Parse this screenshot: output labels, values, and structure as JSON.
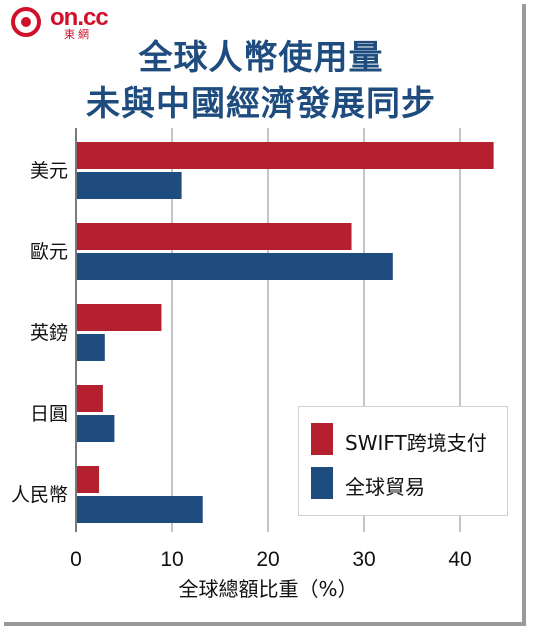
{
  "brand": {
    "logo_text": "on.cc",
    "logo_sub": "東網",
    "red": "#d0112b"
  },
  "title_lines": [
    "全球人幣使用量",
    "未與中國經濟發展同步"
  ],
  "colors": {
    "title": "#1f4c7e",
    "swift": "#b5202e",
    "trade": "#1f4c7e"
  },
  "chart_data": {
    "type": "bar",
    "orientation": "horizontal",
    "categories": [
      "美元",
      "歐元",
      "英鎊",
      "日圓",
      "人民幣"
    ],
    "series": [
      {
        "name": "SWIFT跨境支付",
        "color": "#b5202e",
        "values": [
          43.5,
          28.7,
          8.9,
          2.8,
          2.4
        ]
      },
      {
        "name": "全球貿易",
        "color": "#1f4c7e",
        "values": [
          11.0,
          33.0,
          3.0,
          4.0,
          13.2
        ]
      }
    ],
    "xlabel": "全球總額比重（%）",
    "xlim": [
      0,
      44
    ],
    "xticks": [
      0,
      10,
      20,
      30,
      40
    ],
    "grid": true,
    "legend_position": "bottom-right"
  }
}
